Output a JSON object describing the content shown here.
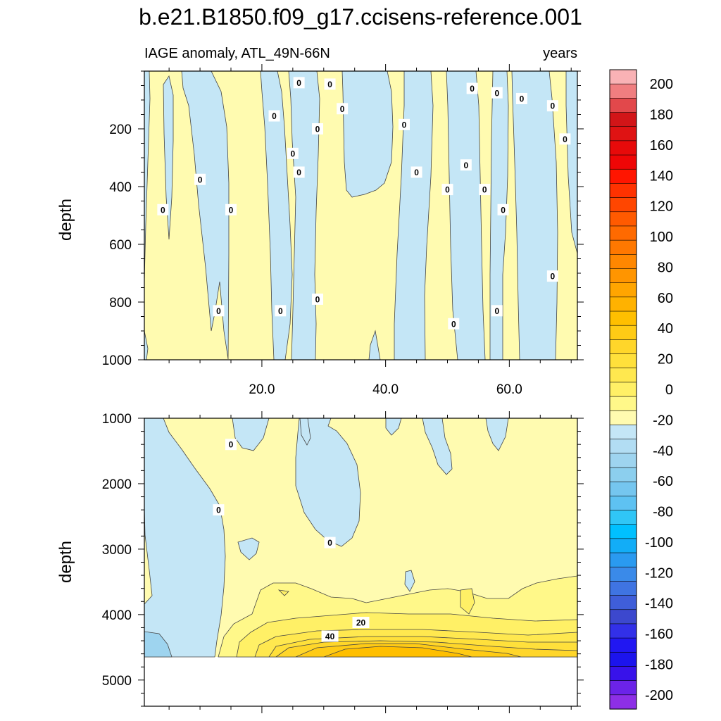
{
  "title": "b.e21.B1850.f09_g17.ccisens-reference.001",
  "subtitle_left": "IAGE anomaly, ATL_49N-66N",
  "subtitle_right": "years",
  "chart_data": [
    {
      "type": "heatmap",
      "panel": "upper",
      "variable": "IAGE anomaly",
      "region": "ATL_49N-66N",
      "units": "years",
      "ylabel": "depth",
      "xlabel": "",
      "xlim": [
        1,
        71
      ],
      "ylim": [
        1000,
        0
      ],
      "y_reversed": true,
      "x_ticks": [
        20,
        40,
        60
      ],
      "x_tick_labels": [
        "20.0",
        "40.0",
        "60.0"
      ],
      "y_ticks": [
        200,
        400,
        600,
        800,
        1000
      ],
      "y_tick_labels": [
        "200",
        "400",
        "600",
        "800",
        "1000"
      ],
      "contour_labels": [
        {
          "text": "0",
          "x": 26,
          "y": 40
        },
        {
          "text": "0",
          "x": 31,
          "y": 45
        },
        {
          "text": "0",
          "x": 33,
          "y": 130
        },
        {
          "text": "0",
          "x": 22,
          "y": 155
        },
        {
          "text": "0",
          "x": 29,
          "y": 200
        },
        {
          "text": "0",
          "x": 43,
          "y": 185
        },
        {
          "text": "0",
          "x": 25,
          "y": 285
        },
        {
          "text": "0",
          "x": 26,
          "y": 350
        },
        {
          "text": "0",
          "x": 10,
          "y": 375
        },
        {
          "text": "0",
          "x": 45,
          "y": 350
        },
        {
          "text": "0",
          "x": 53,
          "y": 325
        },
        {
          "text": "0",
          "x": 50,
          "y": 410
        },
        {
          "text": "0",
          "x": 56,
          "y": 410
        },
        {
          "text": "0",
          "x": 4,
          "y": 480
        },
        {
          "text": "0",
          "x": 15,
          "y": 480
        },
        {
          "text": "0",
          "x": 59,
          "y": 480
        },
        {
          "text": "0",
          "x": 54,
          "y": 60
        },
        {
          "text": "0",
          "x": 58,
          "y": 75
        },
        {
          "text": "0",
          "x": 62,
          "y": 95
        },
        {
          "text": "0",
          "x": 67,
          "y": 120
        },
        {
          "text": "0",
          "x": 69,
          "y": 235
        },
        {
          "text": "0",
          "x": 67,
          "y": 710
        },
        {
          "text": "0",
          "x": 13,
          "y": 830
        },
        {
          "text": "0",
          "x": 23,
          "y": 830
        },
        {
          "text": "0",
          "x": 29,
          "y": 790
        },
        {
          "text": "0",
          "x": 51,
          "y": 875
        },
        {
          "text": "0",
          "x": 58,
          "y": 830
        }
      ]
    },
    {
      "type": "heatmap",
      "panel": "lower",
      "variable": "IAGE anomaly",
      "region": "ATL_49N-66N",
      "units": "years",
      "ylabel": "depth",
      "xlabel": "",
      "xlim": [
        1,
        71
      ],
      "ylim": [
        5400,
        1000
      ],
      "y_reversed": true,
      "x_ticks": [
        20,
        40,
        60
      ],
      "x_tick_labels": [
        "",
        "",
        ""
      ],
      "y_ticks": [
        1000,
        2000,
        3000,
        4000,
        5000
      ],
      "y_tick_labels": [
        "1000",
        "2000",
        "3000",
        "4000",
        "5000"
      ],
      "no_data_below": 4600,
      "contour_labels": [
        {
          "text": "0",
          "x": 15,
          "y": 1400
        },
        {
          "text": "0",
          "x": 13,
          "y": 2400
        },
        {
          "text": "0",
          "x": 31,
          "y": 2900
        },
        {
          "text": "20",
          "x": 36,
          "y": 4120
        },
        {
          "text": "40",
          "x": 31,
          "y": 4330
        }
      ]
    }
  ],
  "colorbar": {
    "levels": [
      200,
      180,
      160,
      140,
      120,
      100,
      80,
      60,
      40,
      20,
      0,
      -20,
      -40,
      -60,
      -80,
      -100,
      -120,
      -140,
      -160,
      -180,
      -200
    ],
    "labels": [
      "200",
      "180",
      "160",
      "140",
      "120",
      "100",
      "80",
      "60",
      "40",
      "20",
      "0",
      "-20",
      "-40",
      "-60",
      "-80",
      "-100",
      "-120",
      "-140",
      "-160",
      "-180",
      "-200"
    ],
    "colors": [
      "#f9b2b5",
      "#f07e80",
      "#e2484b",
      "#d21518",
      "#df1313",
      "#e70a0a",
      "#ef0606",
      "#ff1500",
      "#ff3200",
      "#ff4600",
      "#ff5a00",
      "#ff6a00",
      "#ff7800",
      "#ff8700",
      "#ff9500",
      "#ffa500",
      "#ffb200",
      "#ffbf00",
      "#ffcb15",
      "#ffd62a",
      "#ffe03b",
      "#ffe84f",
      "#fff066",
      "#fff889",
      "#fffbb0",
      "#c4e6f6",
      "#b2ddf3",
      "#9ed4ef",
      "#8ccfee",
      "#75c6ef",
      "#5ec2f2",
      "#30c6f6",
      "#00c0ff",
      "#12adf7",
      "#2a9af0",
      "#3a8ae9",
      "#3f74e2",
      "#3f5ed9",
      "#3c48ce",
      "#3230e8",
      "#2117f2",
      "#1c14ed",
      "#3812ea",
      "#6b23e8",
      "#8d2fe6"
    ]
  }
}
